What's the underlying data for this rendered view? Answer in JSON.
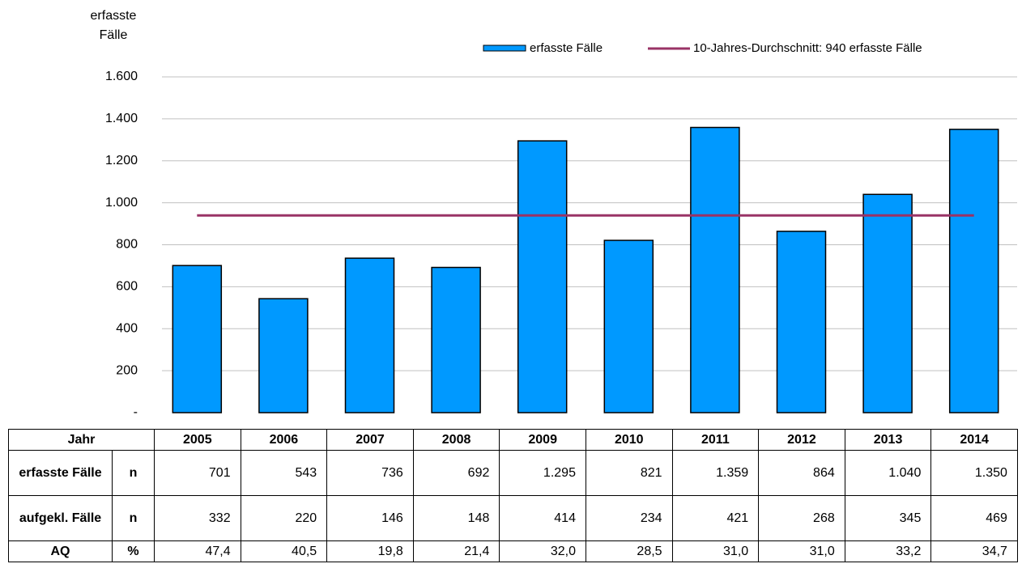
{
  "chart_data": {
    "type": "bar",
    "y_axis_label": "erfasste Fälle",
    "categories": [
      "2005",
      "2006",
      "2007",
      "2008",
      "2009",
      "2010",
      "2011",
      "2012",
      "2013",
      "2014"
    ],
    "series": [
      {
        "name": "erfasste Fälle",
        "color": "#0099ff",
        "values": [
          701,
          543,
          736,
          692,
          1295,
          821,
          1359,
          864,
          1040,
          1350
        ],
        "value_labels": [
          "701",
          "543",
          "736",
          "692",
          "1.295",
          "821",
          "1.359",
          "864",
          "1.040",
          "1.350"
        ]
      }
    ],
    "reference_line": {
      "name": "10-Jahres-Durchschnitt: 940 erfasste Fälle",
      "value": 940,
      "color": "#993366"
    },
    "ylim": [
      0,
      1600
    ],
    "yticks": [
      {
        "value": 0,
        "label": "-"
      },
      200,
      400,
      600,
      800,
      {
        "value": 1000,
        "label": "1.000"
      },
      {
        "value": 1200,
        "label": "1.200"
      },
      {
        "value": 1400,
        "label": "1.400"
      },
      {
        "value": 1600,
        "label": "1.600"
      }
    ],
    "grid": true,
    "legend": "top-right",
    "table": {
      "header": "Jahr",
      "rows": [
        {
          "label": "erfasste Fälle",
          "unit": "n"
        },
        {
          "label": "aufgekl. Fälle",
          "unit": "n",
          "values": [
            "332",
            "220",
            "146",
            "148",
            "414",
            "234",
            "421",
            "268",
            "345",
            "469"
          ]
        },
        {
          "label": "AQ",
          "unit": "%",
          "values": [
            "47,4",
            "40,5",
            "19,8",
            "21,4",
            "32,0",
            "28,5",
            "31,0",
            "31,0",
            "33,2",
            "34,7"
          ]
        }
      ]
    }
  }
}
